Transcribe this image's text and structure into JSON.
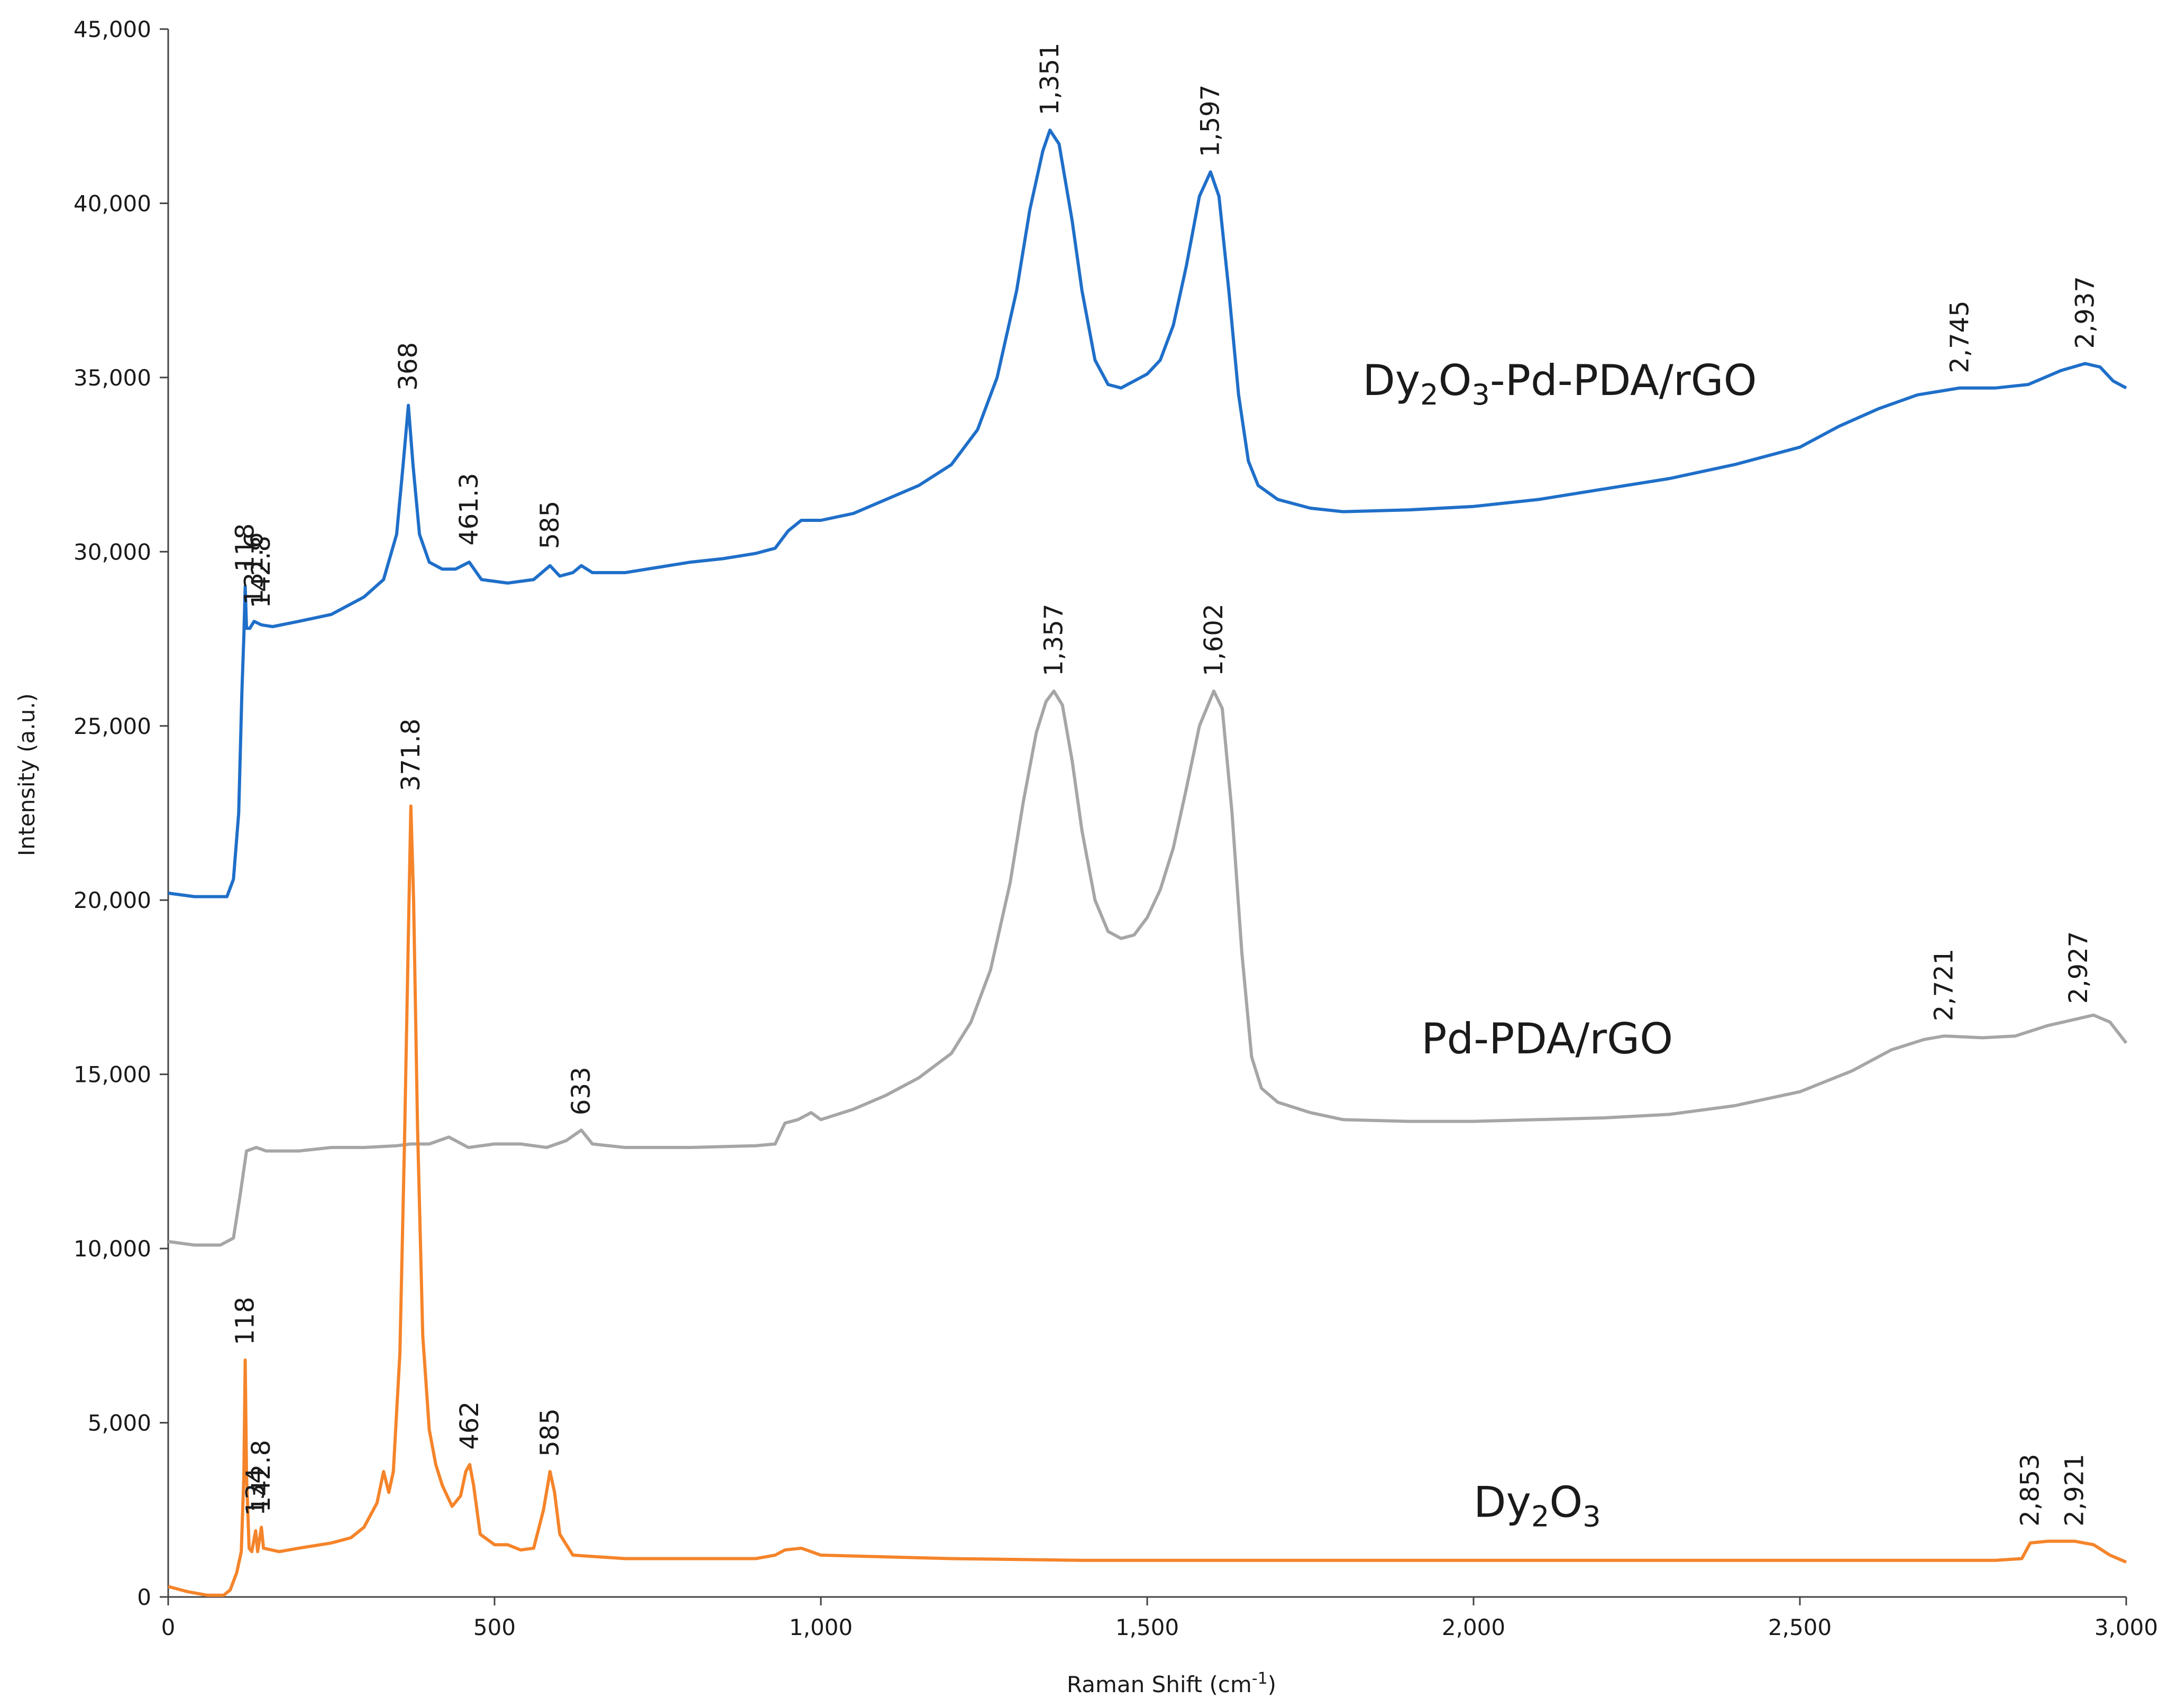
{
  "chart_data": {
    "type": "line",
    "title": "",
    "xlabel": "Raman Shift (cm-1)",
    "xlabel_base": "Raman Shift (cm",
    "xlabel_sup": "-1",
    "xlabel_close": ")",
    "ylabel": "Intensity (a.u.)",
    "xlim": [
      0,
      3000
    ],
    "ylim": [
      0,
      45000
    ],
    "grid": false,
    "x_ticks": [
      0,
      500,
      1000,
      1500,
      2000,
      2500,
      3000
    ],
    "x_tick_labels": [
      "0",
      "500",
      "1,000",
      "1,500",
      "2,000",
      "2,500",
      "3,000"
    ],
    "y_ticks": [
      0,
      5000,
      10000,
      15000,
      20000,
      25000,
      30000,
      35000,
      40000,
      45000
    ],
    "y_tick_labels": [
      "0",
      "5,000",
      "10,000",
      "15,000",
      "20,000",
      "25,000",
      "30,000",
      "35,000",
      "40,000",
      "45,000"
    ],
    "series": [
      {
        "name": "Dy2O3-Pd-PDA/rGO",
        "label_parts": [
          "Dy",
          "2",
          "O",
          "3",
          "-Pd-PDA/rGO"
        ],
        "color": "#1f6fc9",
        "label_pos": [
          1830,
          34500
        ],
        "points": [
          [
            0,
            20200
          ],
          [
            40,
            20100
          ],
          [
            70,
            20100
          ],
          [
            90,
            20100
          ],
          [
            100,
            20600
          ],
          [
            108,
            22500
          ],
          [
            113,
            26000
          ],
          [
            116,
            27600
          ],
          [
            118,
            29000
          ],
          [
            120,
            27800
          ],
          [
            125,
            27800
          ],
          [
            131.6,
            28000
          ],
          [
            142.8,
            27900
          ],
          [
            160,
            27850
          ],
          [
            200,
            28000
          ],
          [
            250,
            28200
          ],
          [
            300,
            28700
          ],
          [
            330,
            29200
          ],
          [
            350,
            30500
          ],
          [
            360,
            32500
          ],
          [
            368,
            34200
          ],
          [
            375,
            32500
          ],
          [
            385,
            30500
          ],
          [
            400,
            29700
          ],
          [
            420,
            29500
          ],
          [
            440,
            29500
          ],
          [
            461.3,
            29700
          ],
          [
            480,
            29200
          ],
          [
            520,
            29100
          ],
          [
            560,
            29200
          ],
          [
            585,
            29600
          ],
          [
            600,
            29300
          ],
          [
            620,
            29400
          ],
          [
            633,
            29600
          ],
          [
            650,
            29400
          ],
          [
            700,
            29400
          ],
          [
            750,
            29550
          ],
          [
            800,
            29700
          ],
          [
            850,
            29800
          ],
          [
            900,
            29950
          ],
          [
            930,
            30100
          ],
          [
            950,
            30600
          ],
          [
            970,
            30900
          ],
          [
            1000,
            30900
          ],
          [
            1050,
            31100
          ],
          [
            1100,
            31500
          ],
          [
            1150,
            31900
          ],
          [
            1200,
            32500
          ],
          [
            1240,
            33500
          ],
          [
            1270,
            35000
          ],
          [
            1300,
            37500
          ],
          [
            1320,
            39800
          ],
          [
            1340,
            41500
          ],
          [
            1351,
            42100
          ],
          [
            1365,
            41700
          ],
          [
            1385,
            39500
          ],
          [
            1400,
            37500
          ],
          [
            1420,
            35500
          ],
          [
            1440,
            34800
          ],
          [
            1460,
            34700
          ],
          [
            1480,
            34900
          ],
          [
            1500,
            35100
          ],
          [
            1520,
            35500
          ],
          [
            1540,
            36500
          ],
          [
            1560,
            38200
          ],
          [
            1580,
            40200
          ],
          [
            1597,
            40900
          ],
          [
            1610,
            40200
          ],
          [
            1625,
            37500
          ],
          [
            1640,
            34500
          ],
          [
            1655,
            32600
          ],
          [
            1670,
            31900
          ],
          [
            1700,
            31500
          ],
          [
            1750,
            31250
          ],
          [
            1800,
            31150
          ],
          [
            1900,
            31200
          ],
          [
            2000,
            31300
          ],
          [
            2100,
            31500
          ],
          [
            2200,
            31800
          ],
          [
            2300,
            32100
          ],
          [
            2400,
            32500
          ],
          [
            2500,
            33000
          ],
          [
            2560,
            33600
          ],
          [
            2620,
            34100
          ],
          [
            2680,
            34500
          ],
          [
            2745,
            34700
          ],
          [
            2800,
            34700
          ],
          [
            2850,
            34800
          ],
          [
            2900,
            35200
          ],
          [
            2937,
            35400
          ],
          [
            2960,
            35300
          ],
          [
            2980,
            34900
          ],
          [
            3000,
            34700
          ]
        ]
      },
      {
        "name": "Pd-PDA/rGO",
        "label_parts": [
          "Pd-PDA/rGO"
        ],
        "color": "#a6a6a6",
        "label_pos": [
          1920,
          15600
        ],
        "points": [
          [
            0,
            10200
          ],
          [
            40,
            10100
          ],
          [
            80,
            10100
          ],
          [
            100,
            10300
          ],
          [
            110,
            11500
          ],
          [
            120,
            12800
          ],
          [
            135,
            12900
          ],
          [
            150,
            12800
          ],
          [
            200,
            12800
          ],
          [
            250,
            12900
          ],
          [
            300,
            12900
          ],
          [
            350,
            12950
          ],
          [
            371.8,
            13000
          ],
          [
            400,
            13000
          ],
          [
            430,
            13200
          ],
          [
            460,
            12900
          ],
          [
            500,
            13000
          ],
          [
            540,
            13000
          ],
          [
            580,
            12900
          ],
          [
            610,
            13100
          ],
          [
            633,
            13400
          ],
          [
            650,
            13000
          ],
          [
            700,
            12900
          ],
          [
            800,
            12900
          ],
          [
            900,
            12950
          ],
          [
            930,
            13000
          ],
          [
            945,
            13600
          ],
          [
            965,
            13700
          ],
          [
            985,
            13900
          ],
          [
            1000,
            13700
          ],
          [
            1050,
            14000
          ],
          [
            1100,
            14400
          ],
          [
            1150,
            14900
          ],
          [
            1200,
            15600
          ],
          [
            1230,
            16500
          ],
          [
            1260,
            18000
          ],
          [
            1290,
            20500
          ],
          [
            1310,
            22800
          ],
          [
            1330,
            24800
          ],
          [
            1345,
            25700
          ],
          [
            1357,
            26000
          ],
          [
            1370,
            25600
          ],
          [
            1385,
            24000
          ],
          [
            1400,
            22000
          ],
          [
            1420,
            20000
          ],
          [
            1440,
            19100
          ],
          [
            1460,
            18900
          ],
          [
            1480,
            19000
          ],
          [
            1500,
            19500
          ],
          [
            1520,
            20300
          ],
          [
            1540,
            21500
          ],
          [
            1560,
            23200
          ],
          [
            1580,
            25000
          ],
          [
            1602,
            26000
          ],
          [
            1615,
            25500
          ],
          [
            1630,
            22500
          ],
          [
            1645,
            18500
          ],
          [
            1660,
            15500
          ],
          [
            1675,
            14600
          ],
          [
            1700,
            14200
          ],
          [
            1750,
            13900
          ],
          [
            1800,
            13700
          ],
          [
            1900,
            13650
          ],
          [
            2000,
            13650
          ],
          [
            2100,
            13700
          ],
          [
            2200,
            13750
          ],
          [
            2300,
            13850
          ],
          [
            2400,
            14100
          ],
          [
            2500,
            14500
          ],
          [
            2580,
            15100
          ],
          [
            2640,
            15700
          ],
          [
            2690,
            16000
          ],
          [
            2721,
            16100
          ],
          [
            2780,
            16050
          ],
          [
            2830,
            16100
          ],
          [
            2880,
            16400
          ],
          [
            2927,
            16600
          ],
          [
            2950,
            16700
          ],
          [
            2975,
            16500
          ],
          [
            3000,
            15900
          ]
        ]
      },
      {
        "name": "Dy2O3",
        "label_parts": [
          "Dy",
          "2",
          "O",
          "3"
        ],
        "color": "#f5842a",
        "label_pos": [
          2000,
          2300
        ],
        "points": [
          [
            0,
            300
          ],
          [
            30,
            150
          ],
          [
            60,
            50
          ],
          [
            85,
            50
          ],
          [
            95,
            200
          ],
          [
            105,
            700
          ],
          [
            112,
            1300
          ],
          [
            116,
            3500
          ],
          [
            118,
            6800
          ],
          [
            120,
            3500
          ],
          [
            124,
            1400
          ],
          [
            128,
            1300
          ],
          [
            134,
            1900
          ],
          [
            137,
            1300
          ],
          [
            142.8,
            2000
          ],
          [
            146,
            1400
          ],
          [
            170,
            1300
          ],
          [
            200,
            1400
          ],
          [
            250,
            1550
          ],
          [
            280,
            1700
          ],
          [
            300,
            2000
          ],
          [
            320,
            2700
          ],
          [
            330,
            3600
          ],
          [
            338,
            3000
          ],
          [
            345,
            3600
          ],
          [
            355,
            7000
          ],
          [
            362,
            13000
          ],
          [
            368,
            19000
          ],
          [
            371.8,
            22700
          ],
          [
            376,
            20000
          ],
          [
            382,
            13500
          ],
          [
            390,
            7500
          ],
          [
            400,
            4800
          ],
          [
            410,
            3800
          ],
          [
            420,
            3200
          ],
          [
            435,
            2600
          ],
          [
            448,
            2900
          ],
          [
            456,
            3600
          ],
          [
            462,
            3800
          ],
          [
            468,
            3200
          ],
          [
            478,
            1800
          ],
          [
            500,
            1500
          ],
          [
            520,
            1500
          ],
          [
            540,
            1350
          ],
          [
            560,
            1400
          ],
          [
            575,
            2500
          ],
          [
            585,
            3600
          ],
          [
            592,
            3000
          ],
          [
            600,
            1800
          ],
          [
            620,
            1200
          ],
          [
            700,
            1100
          ],
          [
            800,
            1100
          ],
          [
            900,
            1100
          ],
          [
            930,
            1200
          ],
          [
            945,
            1350
          ],
          [
            970,
            1400
          ],
          [
            1000,
            1200
          ],
          [
            1100,
            1150
          ],
          [
            1200,
            1100
          ],
          [
            1400,
            1050
          ],
          [
            1600,
            1050
          ],
          [
            1800,
            1050
          ],
          [
            2000,
            1050
          ],
          [
            2200,
            1050
          ],
          [
            2400,
            1050
          ],
          [
            2600,
            1050
          ],
          [
            2800,
            1050
          ],
          [
            2840,
            1100
          ],
          [
            2853,
            1550
          ],
          [
            2880,
            1600
          ],
          [
            2921,
            1600
          ],
          [
            2950,
            1500
          ],
          [
            2975,
            1200
          ],
          [
            3000,
            1000
          ]
        ]
      }
    ],
    "annotations": [
      {
        "text": "118",
        "series": 0,
        "x": 118,
        "y": 29000
      },
      {
        "text": "131.6",
        "series": 0,
        "x": 131.6,
        "y": 28050
      },
      {
        "text": "142.8",
        "series": 0,
        "x": 142.8,
        "y": 27950
      },
      {
        "text": "368",
        "series": 0,
        "x": 368,
        "y": 34200
      },
      {
        "text": "461.3",
        "series": 0,
        "x": 461.3,
        "y": 29750
      },
      {
        "text": "585",
        "series": 0,
        "x": 585,
        "y": 29650
      },
      {
        "text": "1,351",
        "series": 0,
        "x": 1351,
        "y": 42100
      },
      {
        "text": "1,597",
        "series": 0,
        "x": 1597,
        "y": 40900
      },
      {
        "text": "2,745",
        "series": 0,
        "x": 2745,
        "y": 34700
      },
      {
        "text": "2,937",
        "series": 0,
        "x": 2937,
        "y": 35400
      },
      {
        "text": "1,357",
        "series": 1,
        "x": 1357,
        "y": 26000
      },
      {
        "text": "1,602",
        "series": 1,
        "x": 1602,
        "y": 26000
      },
      {
        "text": "633",
        "series": 1,
        "x": 633,
        "y": 13400
      },
      {
        "text": "2,721",
        "series": 1,
        "x": 2721,
        "y": 16100
      },
      {
        "text": "2,927",
        "series": 1,
        "x": 2927,
        "y": 16600
      },
      {
        "text": "371.8",
        "series": 2,
        "x": 371.8,
        "y": 22700
      },
      {
        "text": "118",
        "series": 2,
        "x": 118,
        "y": 6800
      },
      {
        "text": "134",
        "series": 2,
        "x": 134,
        "y": 1900
      },
      {
        "text": "142.8",
        "series": 2,
        "x": 142.8,
        "y": 2000
      },
      {
        "text": "462",
        "series": 2,
        "x": 462,
        "y": 3800
      },
      {
        "text": "585",
        "series": 2,
        "x": 585,
        "y": 3600
      },
      {
        "text": "2,853",
        "series": 2,
        "x": 2853,
        "y": 1600
      },
      {
        "text": "2,921",
        "series": 2,
        "x": 2921,
        "y": 1600
      }
    ]
  }
}
